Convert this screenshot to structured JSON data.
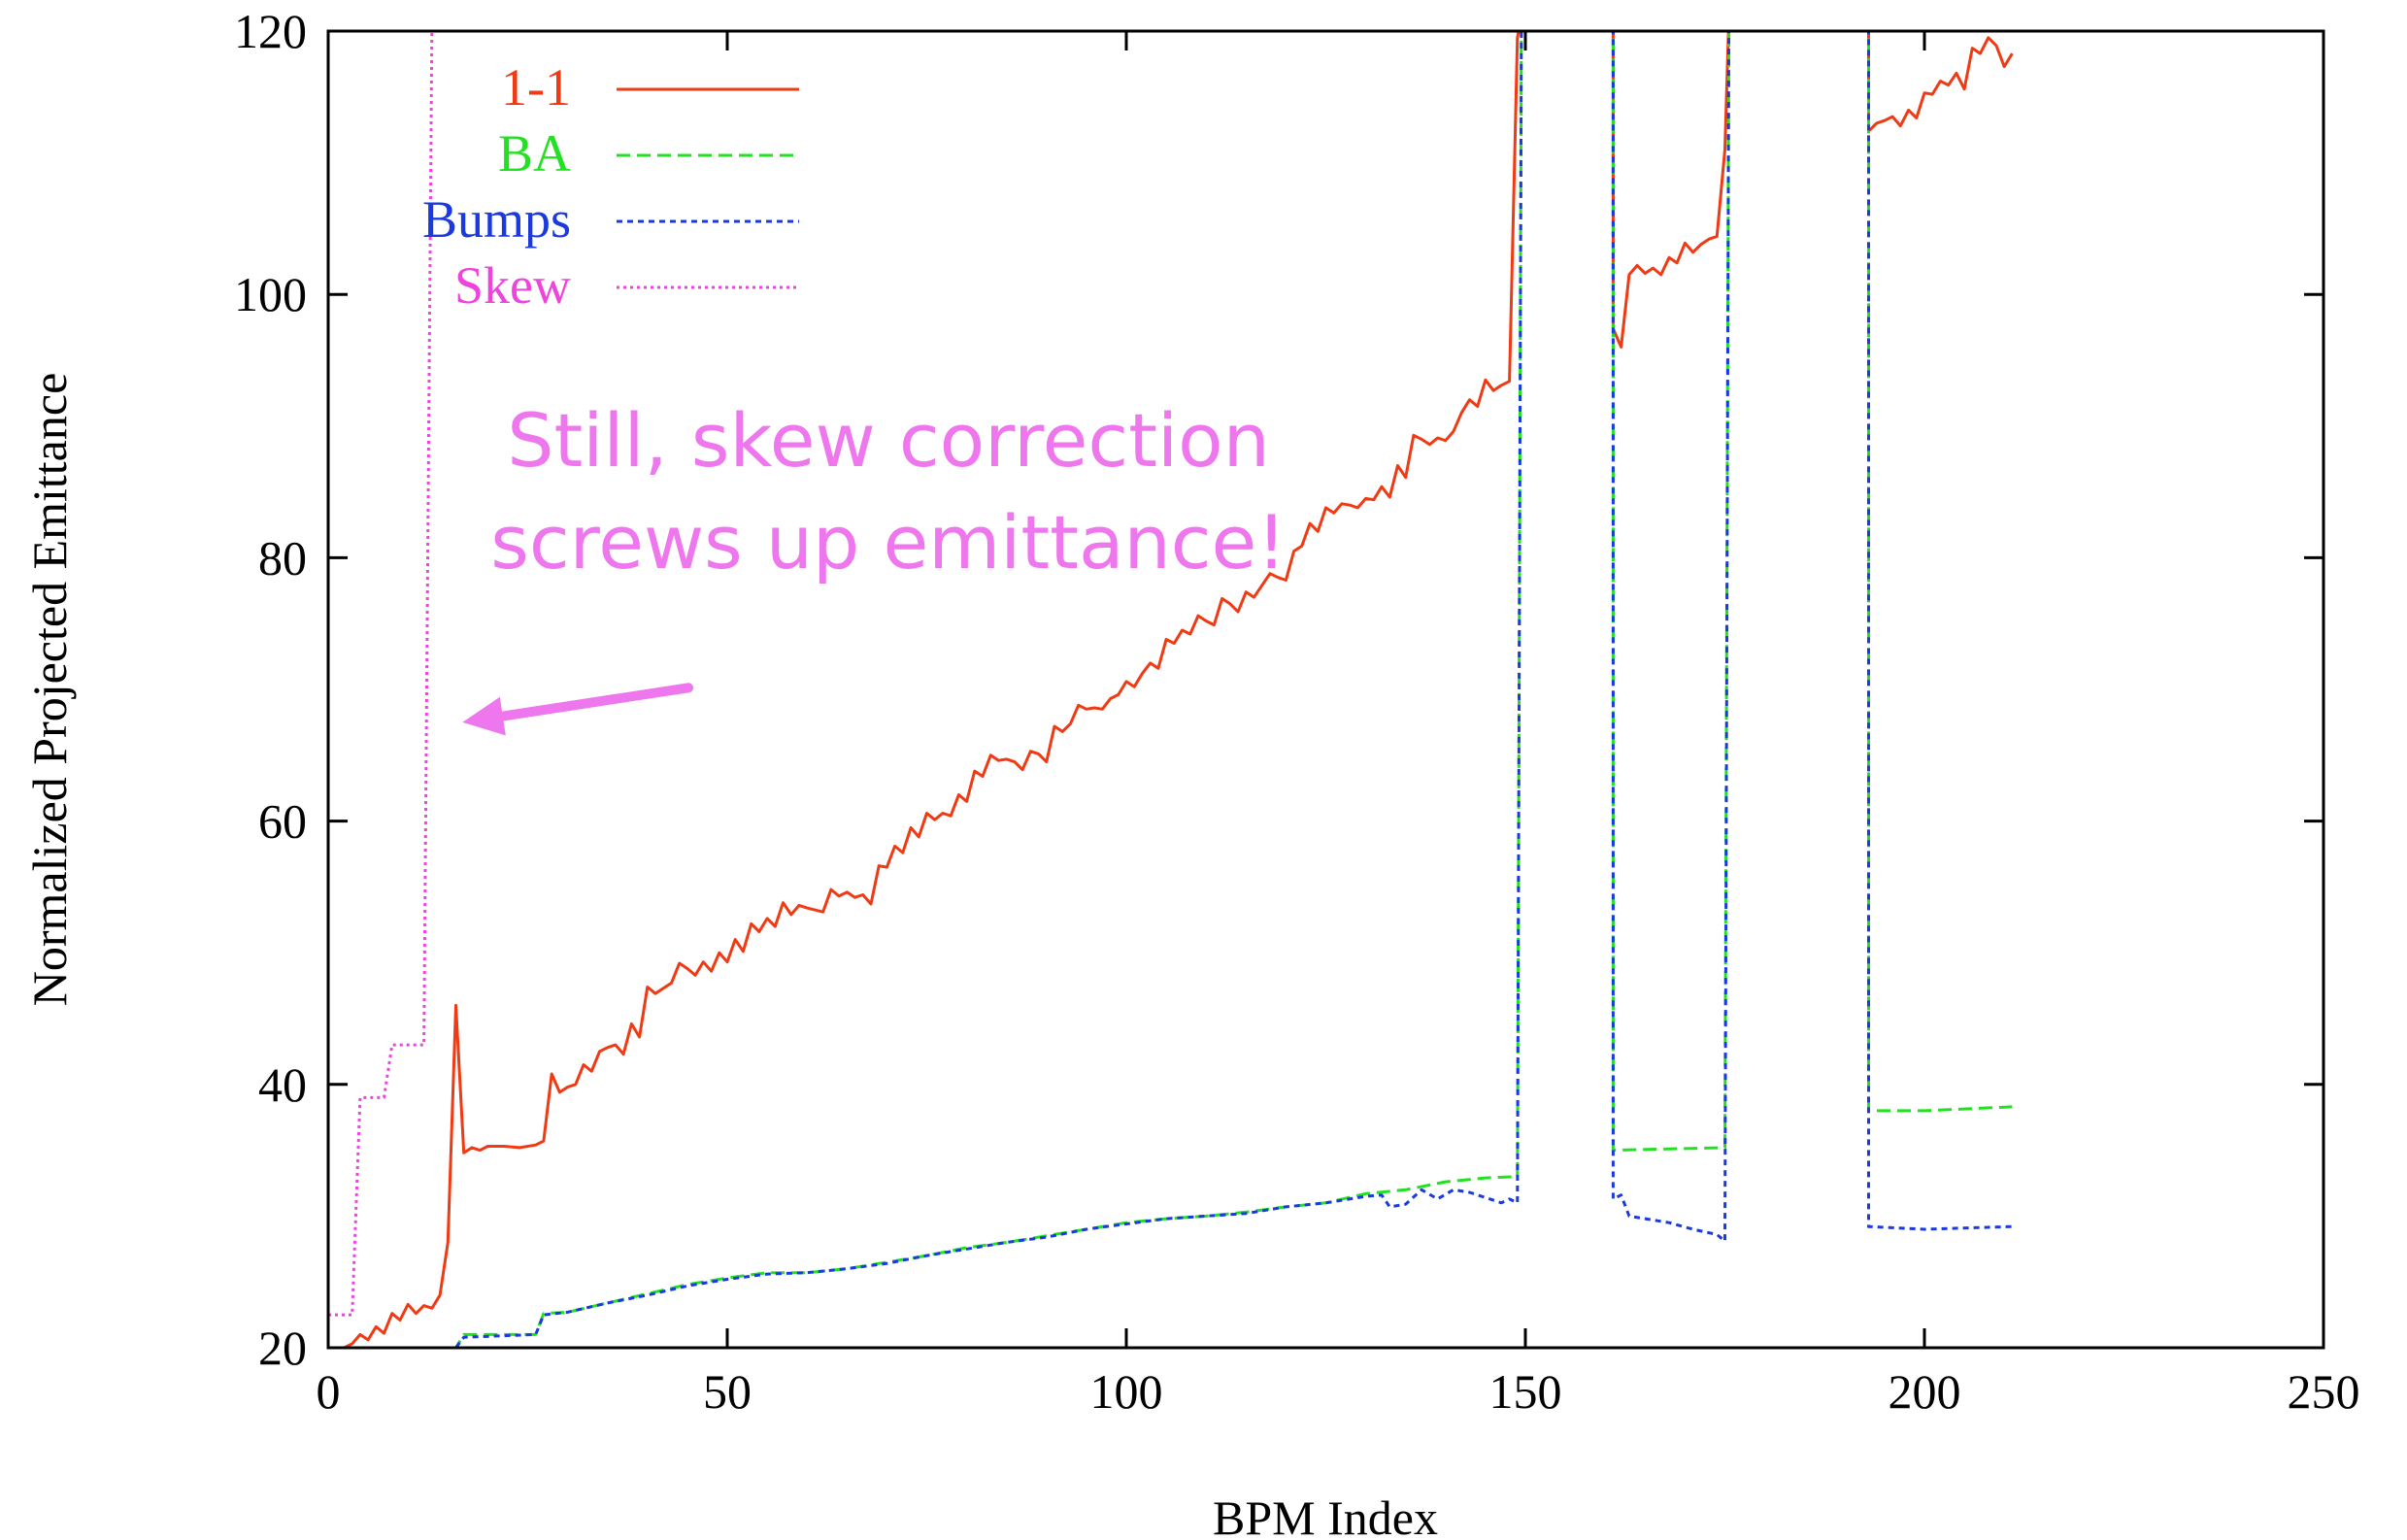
{
  "chart_data": {
    "type": "line",
    "title": "",
    "xlabel": "BPM Index",
    "ylabel": "Normalized Projected Emittance",
    "xlim": [
      0,
      250
    ],
    "ylim": [
      20,
      120
    ],
    "xticks": [
      0,
      50,
      100,
      150,
      200,
      250
    ],
    "yticks": [
      20,
      40,
      60,
      80,
      100,
      120
    ],
    "grid": false,
    "legend_position": "top-left",
    "series": [
      {
        "name": "1-1",
        "color": "#f03a14",
        "dash": "solid",
        "points": [
          [
            0,
            20
          ],
          [
            1,
            20
          ],
          [
            2,
            20
          ],
          [
            3,
            20.3
          ],
          [
            4,
            21
          ],
          [
            5,
            20.6
          ],
          [
            6,
            21.6
          ],
          [
            7,
            21.1
          ],
          [
            8,
            22.6
          ],
          [
            9,
            22.1
          ],
          [
            10,
            23.3
          ],
          [
            11,
            22.6
          ],
          [
            12,
            23.2
          ],
          [
            13,
            23.0
          ],
          [
            14,
            24.0
          ],
          [
            15,
            28.0
          ],
          [
            16,
            46.0
          ],
          [
            17,
            34.8
          ],
          [
            18,
            35.2
          ],
          [
            19,
            35.0
          ],
          [
            20,
            35.3
          ],
          [
            22,
            35.3
          ],
          [
            24,
            35.2
          ],
          [
            26,
            35.4
          ],
          [
            27,
            35.7
          ],
          [
            28,
            40.8
          ],
          [
            29,
            39.4
          ],
          [
            30,
            39.8
          ],
          [
            31,
            40.0
          ],
          [
            32,
            41.5
          ],
          [
            33,
            41.0
          ],
          [
            34,
            42.5
          ],
          [
            35,
            42.8
          ],
          [
            36,
            43.0
          ],
          [
            37,
            42.3
          ],
          [
            38,
            44.6
          ],
          [
            39,
            43.6
          ],
          [
            40,
            47.4
          ],
          [
            41,
            46.9
          ],
          [
            42,
            47.3
          ],
          [
            43,
            47.7
          ],
          [
            44,
            49.2
          ],
          [
            45,
            48.8
          ],
          [
            46,
            48.3
          ],
          [
            47,
            49.3
          ],
          [
            48,
            48.6
          ],
          [
            49,
            50.0
          ],
          [
            50,
            49.3
          ],
          [
            51,
            51.0
          ],
          [
            52,
            50.1
          ],
          [
            53,
            52.2
          ],
          [
            54,
            51.6
          ],
          [
            55,
            52.6
          ],
          [
            56,
            52.0
          ],
          [
            57,
            53.8
          ],
          [
            58,
            52.9
          ],
          [
            59,
            53.6
          ],
          [
            60,
            53.4
          ],
          [
            62,
            53.1
          ],
          [
            63,
            54.8
          ],
          [
            64,
            54.3
          ],
          [
            65,
            54.6
          ],
          [
            66,
            54.2
          ],
          [
            67,
            54.4
          ],
          [
            68,
            53.7
          ],
          [
            69,
            56.6
          ],
          [
            70,
            56.5
          ],
          [
            71,
            58.1
          ],
          [
            72,
            57.6
          ],
          [
            73,
            59.5
          ],
          [
            74,
            58.8
          ],
          [
            75,
            60.6
          ],
          [
            76,
            60.1
          ],
          [
            77,
            60.6
          ],
          [
            78,
            60.4
          ],
          [
            79,
            62.0
          ],
          [
            80,
            61.5
          ],
          [
            81,
            63.8
          ],
          [
            82,
            63.4
          ],
          [
            83,
            65.0
          ],
          [
            84,
            64.6
          ],
          [
            85,
            64.7
          ],
          [
            86,
            64.5
          ],
          [
            87,
            63.9
          ],
          [
            88,
            65.3
          ],
          [
            89,
            65.1
          ],
          [
            90,
            64.5
          ],
          [
            91,
            67.2
          ],
          [
            92,
            66.8
          ],
          [
            93,
            67.4
          ],
          [
            94,
            68.8
          ],
          [
            95,
            68.5
          ],
          [
            96,
            68.6
          ],
          [
            97,
            68.5
          ],
          [
            98,
            69.3
          ],
          [
            99,
            69.6
          ],
          [
            100,
            70.6
          ],
          [
            101,
            70.2
          ],
          [
            102,
            71.2
          ],
          [
            103,
            72.0
          ],
          [
            104,
            71.6
          ],
          [
            105,
            73.8
          ],
          [
            106,
            73.5
          ],
          [
            107,
            74.5
          ],
          [
            108,
            74.2
          ],
          [
            109,
            75.6
          ],
          [
            110,
            75.2
          ],
          [
            111,
            74.9
          ],
          [
            112,
            76.9
          ],
          [
            113,
            76.5
          ],
          [
            114,
            75.9
          ],
          [
            115,
            77.4
          ],
          [
            116,
            77.0
          ],
          [
            117,
            77.9
          ],
          [
            118,
            78.8
          ],
          [
            119,
            78.5
          ],
          [
            120,
            78.3
          ],
          [
            121,
            80.5
          ],
          [
            122,
            80.9
          ],
          [
            123,
            82.6
          ],
          [
            124,
            82.0
          ],
          [
            125,
            83.8
          ],
          [
            126,
            83.4
          ],
          [
            127,
            84.1
          ],
          [
            128,
            84.0
          ],
          [
            129,
            83.8
          ],
          [
            130,
            84.5
          ],
          [
            131,
            84.4
          ],
          [
            132,
            85.4
          ],
          [
            133,
            84.6
          ],
          [
            134,
            87.0
          ],
          [
            135,
            86.1
          ],
          [
            136,
            89.3
          ],
          [
            137,
            89.0
          ],
          [
            138,
            88.6
          ],
          [
            139,
            89.1
          ],
          [
            140,
            88.9
          ],
          [
            141,
            89.6
          ],
          [
            142,
            91.0
          ],
          [
            143,
            92.0
          ],
          [
            144,
            91.5
          ],
          [
            145,
            93.5
          ],
          [
            146,
            92.7
          ],
          [
            147,
            93.1
          ],
          [
            148,
            93.4
          ],
          [
            149,
            119.5
          ],
          [
            149.5,
            121
          ]
        ],
        "segments_after_gaps": [
          [
            [
              161,
              121
            ],
            [
              161,
              97.4
            ],
            [
              162,
              96.0
            ],
            [
              163,
              101.5
            ],
            [
              164,
              102.2
            ],
            [
              165,
              101.6
            ],
            [
              166,
              102.0
            ],
            [
              167,
              101.5
            ],
            [
              168,
              102.8
            ],
            [
              169,
              102.4
            ],
            [
              170,
              103.9
            ],
            [
              171,
              103.2
            ],
            [
              172,
              103.8
            ],
            [
              173,
              104.2
            ],
            [
              174,
              104.4
            ],
            [
              175,
              111.0
            ],
            [
              175.5,
              121
            ]
          ],
          [
            [
              193,
              121
            ],
            [
              193,
              112.4
            ],
            [
              194,
              113.0
            ],
            [
              195,
              113.2
            ],
            [
              196,
              113.5
            ],
            [
              197,
              112.8
            ],
            [
              198,
              114.0
            ],
            [
              199,
              113.4
            ],
            [
              200,
              115.3
            ],
            [
              201,
              115.2
            ],
            [
              202,
              116.2
            ],
            [
              203,
              115.9
            ],
            [
              204,
              116.8
            ],
            [
              205,
              115.6
            ],
            [
              206,
              118.7
            ],
            [
              207,
              118.3
            ],
            [
              208,
              119.5
            ],
            [
              209,
              118.9
            ],
            [
              210,
              117.3
            ],
            [
              211,
              118.3
            ]
          ]
        ]
      },
      {
        "name": "BA",
        "color": "#22e022",
        "dash": "dashed",
        "points": [
          [
            0,
            20
          ],
          [
            16,
            20
          ],
          [
            17,
            21.0
          ],
          [
            26,
            21.0
          ],
          [
            27,
            22.6
          ],
          [
            30,
            22.7
          ],
          [
            35,
            23.4
          ],
          [
            40,
            24.1
          ],
          [
            45,
            24.8
          ],
          [
            50,
            25.3
          ],
          [
            55,
            25.7
          ],
          [
            60,
            25.7
          ],
          [
            65,
            26.0
          ],
          [
            70,
            26.5
          ],
          [
            75,
            27.0
          ],
          [
            80,
            27.6
          ],
          [
            85,
            28.0
          ],
          [
            90,
            28.5
          ],
          [
            95,
            29.0
          ],
          [
            100,
            29.5
          ],
          [
            105,
            29.8
          ],
          [
            110,
            30.0
          ],
          [
            115,
            30.3
          ],
          [
            120,
            30.7
          ],
          [
            125,
            31.0
          ],
          [
            130,
            31.7
          ],
          [
            135,
            32.0
          ],
          [
            140,
            32.6
          ],
          [
            145,
            32.9
          ],
          [
            149,
            33.0
          ],
          [
            149.5,
            121
          ]
        ],
        "segments_after_gaps": [
          [
            [
              161,
              121
            ],
            [
              161,
              35.0
            ],
            [
              175,
              35.2
            ],
            [
              175.5,
              121
            ]
          ],
          [
            [
              193,
              121
            ],
            [
              193,
              38.0
            ],
            [
              200,
              38.0
            ],
            [
              211,
              38.3
            ]
          ]
        ]
      },
      {
        "name": "Bumps",
        "color": "#1a3ae0",
        "dash": "dotted",
        "points": [
          [
            0,
            20
          ],
          [
            16,
            20
          ],
          [
            17,
            20.8
          ],
          [
            26,
            21.0
          ],
          [
            27,
            22.5
          ],
          [
            30,
            22.7
          ],
          [
            35,
            23.4
          ],
          [
            40,
            24.0
          ],
          [
            45,
            24.7
          ],
          [
            50,
            25.2
          ],
          [
            55,
            25.6
          ],
          [
            60,
            25.7
          ],
          [
            65,
            26.0
          ],
          [
            70,
            26.4
          ],
          [
            75,
            27.0
          ],
          [
            80,
            27.5
          ],
          [
            85,
            28.0
          ],
          [
            90,
            28.4
          ],
          [
            95,
            29.0
          ],
          [
            100,
            29.4
          ],
          [
            105,
            29.8
          ],
          [
            110,
            30.0
          ],
          [
            115,
            30.2
          ],
          [
            120,
            30.7
          ],
          [
            125,
            31.0
          ],
          [
            130,
            31.5
          ],
          [
            132,
            31.6
          ],
          [
            133,
            30.7
          ],
          [
            135,
            30.9
          ],
          [
            137,
            32.0
          ],
          [
            139,
            31.3
          ],
          [
            141,
            32.0
          ],
          [
            143,
            31.8
          ],
          [
            145,
            31.4
          ],
          [
            147,
            31.0
          ],
          [
            148,
            31.3
          ],
          [
            149,
            31.0
          ],
          [
            149.5,
            121
          ]
        ],
        "segments_after_gaps": [
          [
            [
              161,
              121
            ],
            [
              161,
              31.3
            ],
            [
              162,
              31.6
            ],
            [
              163,
              30.0
            ],
            [
              165,
              29.8
            ],
            [
              168,
              29.5
            ],
            [
              171,
              29.0
            ],
            [
              174,
              28.6
            ],
            [
              175,
              28.1
            ],
            [
              175.5,
              121
            ]
          ],
          [
            [
              193,
              121
            ],
            [
              193,
              29.2
            ],
            [
              200,
              29.0
            ],
            [
              211,
              29.2
            ]
          ]
        ]
      },
      {
        "name": "Skew",
        "color": "#ee44dd",
        "dash": "fine-dotted",
        "points": [
          [
            0,
            22.5
          ],
          [
            3,
            22.5
          ],
          [
            4,
            39.0
          ],
          [
            7,
            39.0
          ],
          [
            8,
            43.0
          ],
          [
            12,
            43.0
          ],
          [
            13,
            121
          ]
        ],
        "segments_after_gaps": []
      }
    ],
    "annotations": [
      {
        "text_lines": [
          "Still, skew correction",
          "screws up emittance!"
        ],
        "color": "#ee77ee",
        "arrow_from": [
          50,
          77.5
        ],
        "arrow_to": [
          15,
          67.5
        ]
      }
    ]
  }
}
